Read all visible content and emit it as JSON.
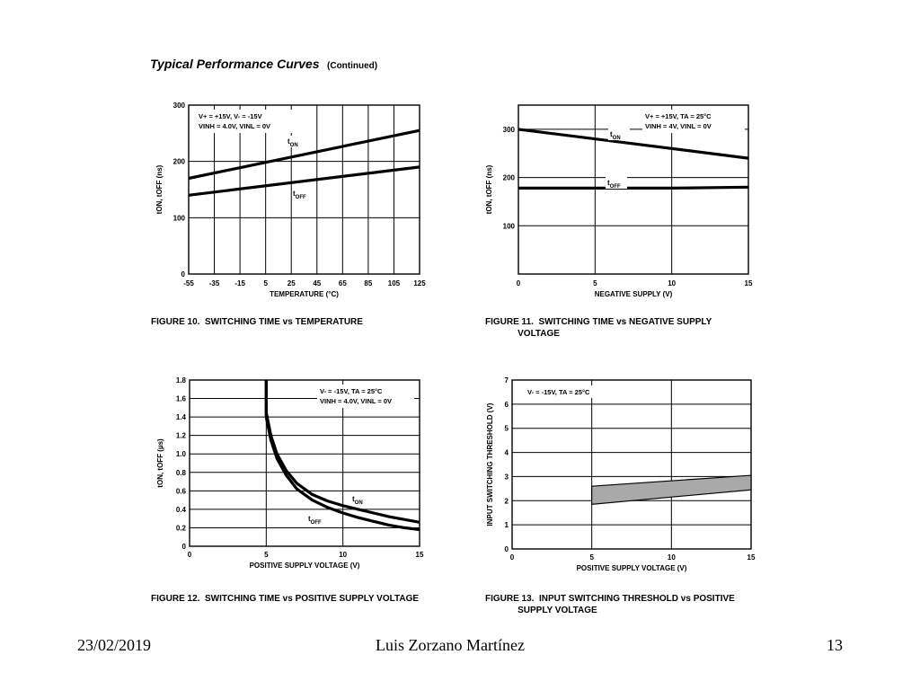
{
  "heading": {
    "title": "Typical Performance Curves",
    "subtitle": "(Continued)"
  },
  "footer": {
    "date": "23/02/2019",
    "author": "Luis Zorzano Martínez",
    "page": "13"
  },
  "chart_data": [
    {
      "type": "line",
      "caption": "FIGURE 10.  SWITCHING TIME vs TEMPERATURE",
      "xlabel": "TEMPERATURE (°C)",
      "ylabel": "tON, tOFF (ns)",
      "xticks": [
        "-55",
        "-35",
        "-15",
        "5",
        "25",
        "45",
        "65",
        "85",
        "105",
        "125"
      ],
      "yticks": [
        "0",
        "100",
        "200",
        "300"
      ],
      "xlim": [
        -55,
        125
      ],
      "ylim": [
        0,
        300
      ],
      "conditions": [
        "V+ = +15V, V- = -15V",
        "VINH = 4.0V, VINL = 0V"
      ],
      "series": [
        {
          "name": "tON",
          "x": [
            -55,
            125
          ],
          "y": [
            170,
            255
          ]
        },
        {
          "name": "tOFF",
          "x": [
            -55,
            125
          ],
          "y": [
            140,
            190
          ]
        }
      ]
    },
    {
      "type": "line",
      "caption": "FIGURE 11.  SWITCHING TIME vs NEGATIVE SUPPLY\n             VOLTAGE",
      "xlabel": "NEGATIVE SUPPLY (V)",
      "ylabel": "tON, tOFF (ns)",
      "xticks": [
        "0",
        "5",
        "10",
        "15"
      ],
      "yticks": [
        "100",
        "200",
        "300"
      ],
      "xlim": [
        0,
        15
      ],
      "ylim": [
        0,
        350
      ],
      "conditions": [
        "V+ = +15V, TA = 25°C",
        "VINH = 4V, VINL = 0V"
      ],
      "series": [
        {
          "name": "tON",
          "x": [
            0,
            15
          ],
          "y": [
            300,
            240
          ]
        },
        {
          "name": "tOFF",
          "x": [
            0,
            10,
            15
          ],
          "y": [
            178,
            178,
            180
          ]
        }
      ]
    },
    {
      "type": "line",
      "caption": "FIGURE 12.  SWITCHING TIME vs POSITIVE SUPPLY VOLTAGE",
      "xlabel": "POSITIVE SUPPLY VOLTAGE (V)",
      "ylabel": "tON, tOFF (µs)",
      "xticks": [
        "0",
        "5",
        "10",
        "15"
      ],
      "yticks": [
        "0",
        "0.2",
        "0.4",
        "0.6",
        "0.8",
        "1.0",
        "1.2",
        "1.4",
        "1.6",
        "1.8"
      ],
      "xlim": [
        0,
        15
      ],
      "ylim": [
        0,
        1.8
      ],
      "conditions": [
        "V- = -15V, TA = 25°C",
        "VINH = 4.0V, VINL = 0V"
      ],
      "series": [
        {
          "name": "tON",
          "x": [
            5,
            5,
            5.3,
            5.7,
            6.3,
            7,
            8,
            9,
            10,
            11,
            12,
            13,
            14,
            15
          ],
          "y": [
            1.8,
            1.45,
            1.2,
            1.0,
            0.82,
            0.68,
            0.56,
            0.49,
            0.44,
            0.4,
            0.36,
            0.32,
            0.29,
            0.26
          ]
        },
        {
          "name": "tOFF",
          "x": [
            5,
            5,
            5.3,
            5.7,
            6.3,
            7,
            8,
            9,
            10,
            11,
            12,
            13,
            14,
            15
          ],
          "y": [
            1.8,
            1.4,
            1.15,
            0.95,
            0.77,
            0.62,
            0.5,
            0.42,
            0.36,
            0.31,
            0.27,
            0.23,
            0.2,
            0.18
          ]
        }
      ]
    },
    {
      "type": "area",
      "caption": "FIGURE 13.  INPUT SWITCHING THRESHOLD vs POSITIVE\n             SUPPLY VOLTAGE",
      "xlabel": "POSITIVE SUPPLY VOLTAGE (V)",
      "ylabel": "INPUT SWITCHING THRESHOLD (V)",
      "xticks": [
        "0",
        "5",
        "10",
        "15"
      ],
      "yticks": [
        "0",
        "1",
        "2",
        "3",
        "4",
        "5",
        "6",
        "7"
      ],
      "xlim": [
        0,
        15
      ],
      "ylim": [
        0,
        7
      ],
      "conditions": [
        "V- = -15V, TA = 25°C"
      ],
      "band": {
        "x": [
          5,
          15
        ],
        "upper": [
          2.6,
          3.05
        ],
        "lower": [
          1.85,
          2.45
        ]
      }
    }
  ]
}
